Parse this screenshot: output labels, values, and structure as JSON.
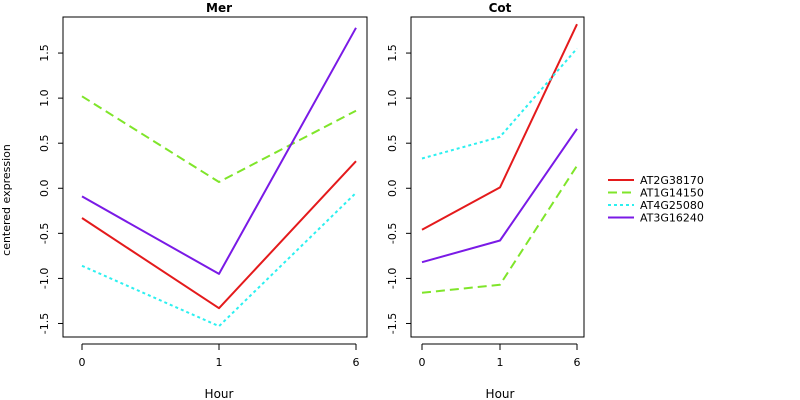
{
  "figure": {
    "ylabel": "centered expression"
  },
  "chart_data": [
    {
      "type": "line",
      "title": "Mer",
      "xlabel": "Hour",
      "x": [
        "0",
        "1",
        "6"
      ],
      "ylim": [
        -1.65,
        1.9
      ],
      "yticks": [
        "-1.5",
        "-1.0",
        "-0.5",
        "0.0",
        "0.5",
        "1.0",
        "1.5"
      ],
      "series": [
        {
          "name": "AT2G38170",
          "values": [
            -0.33,
            -1.33,
            0.3
          ]
        },
        {
          "name": "AT1G14150",
          "values": [
            1.02,
            0.07,
            0.86
          ]
        },
        {
          "name": "AT4G25080",
          "values": [
            -0.86,
            -1.53,
            -0.05
          ]
        },
        {
          "name": "AT3G16240",
          "values": [
            -0.09,
            -0.95,
            1.78
          ]
        }
      ]
    },
    {
      "type": "line",
      "title": "Cot",
      "xlabel": "Hour",
      "x": [
        "0",
        "1",
        "6"
      ],
      "ylim": [
        -1.65,
        1.9
      ],
      "yticks": [
        "-1.5",
        "-1.0",
        "-0.5",
        "0.0",
        "0.5",
        "1.0",
        "1.5"
      ],
      "series": [
        {
          "name": "AT2G38170",
          "values": [
            -0.46,
            0.01,
            1.82
          ]
        },
        {
          "name": "AT1G14150",
          "values": [
            -1.16,
            -1.07,
            0.25
          ]
        },
        {
          "name": "AT4G25080",
          "values": [
            0.33,
            0.57,
            1.55
          ]
        },
        {
          "name": "AT3G16240",
          "values": [
            -0.82,
            -0.58,
            0.66
          ]
        }
      ]
    }
  ],
  "legend": {
    "placement": "right",
    "entries": [
      {
        "name": "AT2G38170",
        "color": "#e41a1c",
        "dash": "solid"
      },
      {
        "name": "AT1G14150",
        "color": "#7fe52a",
        "dash": "dashed"
      },
      {
        "name": "AT4G25080",
        "color": "#2cf0f0",
        "dash": "dotted"
      },
      {
        "name": "AT3G16240",
        "color": "#7a1ae6",
        "dash": "solid"
      }
    ]
  }
}
